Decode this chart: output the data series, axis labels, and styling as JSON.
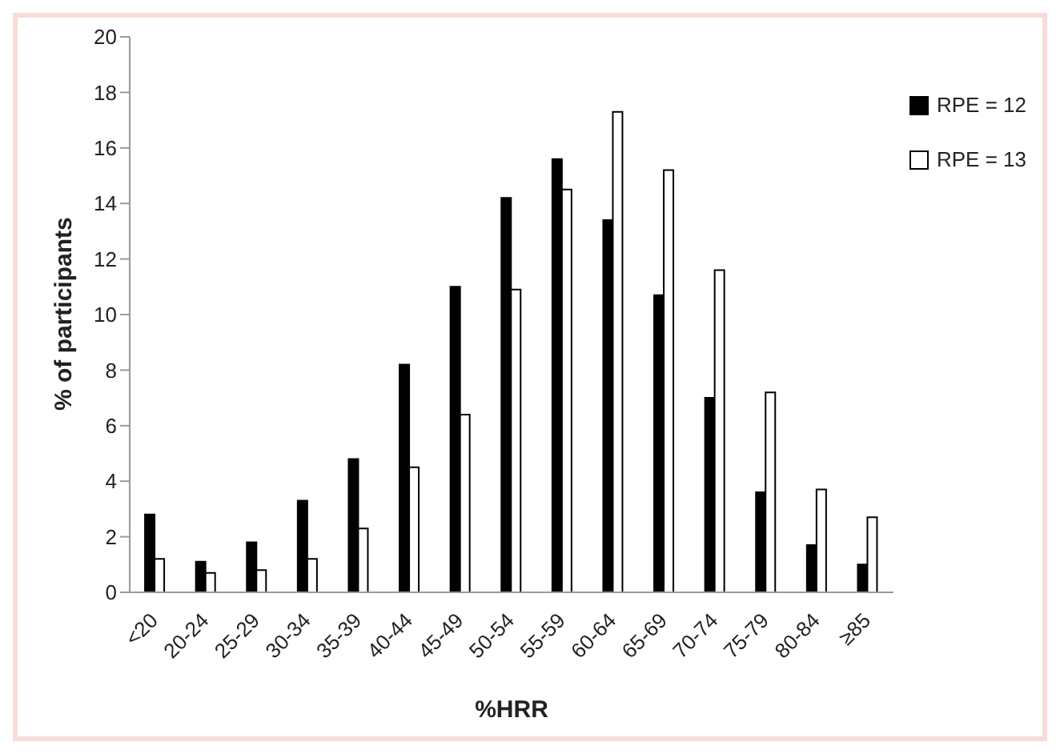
{
  "chart_data": {
    "type": "bar",
    "xlabel": "%HRR",
    "ylabel": "% of participants",
    "categories": [
      "<20",
      "20-24",
      "25-29",
      "30-34",
      "35-39",
      "40-44",
      "45-49",
      "50-54",
      "55-59",
      "60-64",
      "65-69",
      "70-74",
      "75-79",
      "80-84",
      "≥85"
    ],
    "series": [
      {
        "name": "RPE = 12",
        "color": "#000000",
        "values": [
          2.8,
          1.1,
          1.8,
          3.3,
          4.8,
          8.2,
          11,
          14.2,
          15.6,
          13.4,
          10.7,
          7,
          3.6,
          1.7,
          1.0
        ]
      },
      {
        "name": "RPE = 13",
        "color": "#ffffff",
        "values": [
          1.2,
          0.7,
          0.8,
          1.2,
          2.3,
          4.5,
          6.4,
          10.9,
          14.5,
          17.3,
          15.2,
          11.6,
          7.2,
          3.7,
          2.7
        ]
      }
    ],
    "ylim": [
      0,
      20
    ],
    "yticks": [
      0,
      2,
      4,
      6,
      8,
      10,
      12,
      14,
      16,
      18,
      20
    ],
    "grid": false,
    "legend": "top right"
  }
}
